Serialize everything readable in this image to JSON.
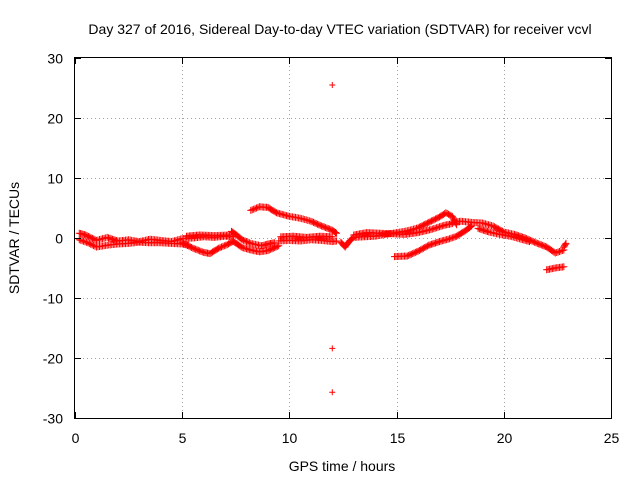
{
  "chart_data": {
    "type": "scatter",
    "title": "Day 327 of 2016, Sidereal Day-to-day VTEC variation (SDTVAR) for receiver vcvl",
    "xlabel": "GPS time / hours",
    "ylabel": "SDTVAR / TECUs",
    "xlim": [
      0,
      25
    ],
    "ylim": [
      -30,
      30
    ],
    "xticks": [
      0,
      5,
      10,
      15,
      20,
      25
    ],
    "yticks": [
      -30,
      -20,
      -10,
      0,
      10,
      20,
      30
    ],
    "grid": true,
    "marker": "+",
    "color": "#ff0000",
    "series": [
      {
        "name": "SDTVAR",
        "segments": [
          [
            [
              0.2,
              0.8
            ],
            [
              0.5,
              0.5
            ],
            [
              1,
              -0.4
            ],
            [
              1.5,
              0.1
            ],
            [
              2,
              -0.5
            ],
            [
              2.5,
              -0.3
            ],
            [
              3,
              -0.6
            ],
            [
              3.5,
              -0.2
            ],
            [
              4,
              -0.4
            ],
            [
              4.5,
              -0.6
            ],
            [
              5,
              -0.1
            ],
            [
              5.5,
              0.0
            ],
            [
              6,
              0.2
            ],
            [
              6.5,
              0.1
            ],
            [
              7,
              0.3
            ],
            [
              7.4,
              0.2
            ]
          ],
          [
            [
              0.2,
              -0.3
            ],
            [
              0.6,
              -0.8
            ],
            [
              1,
              -1.5
            ],
            [
              1.5,
              -1.2
            ],
            [
              2,
              -1.0
            ],
            [
              2.5,
              -0.9
            ],
            [
              3,
              -0.7
            ],
            [
              3.5,
              -0.8
            ],
            [
              4,
              -0.8
            ],
            [
              4.5,
              -0.9
            ],
            [
              5,
              -1.0
            ],
            [
              5.3,
              -1.2
            ]
          ],
          [
            [
              5.0,
              -0.8
            ],
            [
              5.5,
              -1.7
            ],
            [
              6,
              -2.4
            ],
            [
              6.3,
              -2.6
            ],
            [
              6.7,
              -1.7
            ],
            [
              7.1,
              -1.1
            ],
            [
              7.4,
              -0.5
            ]
          ],
          [
            [
              5.2,
              0.3
            ],
            [
              5.8,
              0.5
            ],
            [
              6.5,
              0.4
            ],
            [
              7.2,
              0.5
            ]
          ],
          [
            [
              7.3,
              1.1
            ],
            [
              7.5,
              0.6
            ],
            [
              7.8,
              -0.3
            ],
            [
              8.2,
              -0.9
            ],
            [
              8.7,
              -1.3
            ],
            [
              9.0,
              -1.0
            ],
            [
              9.3,
              -0.8
            ]
          ],
          [
            [
              7.4,
              -0.6
            ],
            [
              7.8,
              -1.6
            ],
            [
              8.2,
              -2.0
            ],
            [
              8.6,
              -2.3
            ],
            [
              9.0,
              -2.1
            ],
            [
              9.5,
              -1.3
            ]
          ],
          [
            [
              8.2,
              4.6
            ],
            [
              8.6,
              5.2
            ],
            [
              9.0,
              5.1
            ],
            [
              9.4,
              4.2
            ],
            [
              10,
              3.6
            ],
            [
              10.5,
              3.3
            ],
            [
              11,
              2.8
            ],
            [
              11.5,
              2.0
            ],
            [
              12,
              1.3
            ],
            [
              12.2,
              0.8
            ]
          ],
          [
            [
              9.5,
              -0.5
            ],
            [
              10,
              -0.4
            ],
            [
              10.5,
              -0.5
            ],
            [
              11,
              -0.3
            ],
            [
              11.5,
              -0.4
            ],
            [
              12,
              -0.6
            ],
            [
              12.2,
              -0.5
            ]
          ],
          [
            [
              9.6,
              0.2
            ],
            [
              10.2,
              0.3
            ],
            [
              10.8,
              0.1
            ],
            [
              11.4,
              0.3
            ],
            [
              12.0,
              0.2
            ]
          ],
          [
            [
              12.4,
              -0.7
            ],
            [
              12.6,
              -1.5
            ],
            [
              12.8,
              -0.5
            ],
            [
              13,
              0.1
            ],
            [
              13.5,
              0.2
            ],
            [
              14,
              0.3
            ],
            [
              14.5,
              0.6
            ],
            [
              15,
              0.9
            ],
            [
              15.5,
              1.2
            ],
            [
              16,
              1.7
            ],
            [
              16.5,
              2.6
            ],
            [
              17,
              3.5
            ],
            [
              17.3,
              4.2
            ],
            [
              17.6,
              3.6
            ],
            [
              17.8,
              2.2
            ]
          ],
          [
            [
              13,
              0.5
            ],
            [
              13.6,
              0.9
            ],
            [
              14.2,
              0.8
            ],
            [
              14.8,
              0.7
            ],
            [
              15.4,
              0.6
            ],
            [
              16.0,
              0.9
            ],
            [
              16.6,
              1.4
            ],
            [
              17.2,
              2.1
            ],
            [
              17.6,
              2.4
            ]
          ],
          [
            [
              14.9,
              -3.1
            ],
            [
              15.5,
              -3.0
            ],
            [
              16,
              -2.2
            ],
            [
              16.5,
              -1.2
            ],
            [
              17,
              -0.6
            ],
            [
              17.4,
              -0.2
            ],
            [
              17.8,
              0.3
            ],
            [
              18.2,
              1.2
            ],
            [
              18.5,
              2.0
            ]
          ],
          [
            [
              17.6,
              2.6
            ],
            [
              18,
              2.8
            ],
            [
              18.5,
              2.6
            ],
            [
              19,
              2.5
            ],
            [
              19.5,
              2.0
            ],
            [
              20,
              1.0
            ],
            [
              20.5,
              0.6
            ],
            [
              21,
              0.0
            ],
            [
              21.5,
              -0.8
            ],
            [
              22,
              -1.5
            ],
            [
              22.4,
              -2.5
            ],
            [
              22.8,
              -2.0
            ]
          ],
          [
            [
              18.8,
              1.6
            ],
            [
              19.3,
              1.0
            ],
            [
              19.8,
              0.6
            ],
            [
              20.3,
              0.3
            ],
            [
              20.8,
              -0.2
            ],
            [
              21.2,
              -0.6
            ]
          ],
          [
            [
              22.0,
              -5.3
            ],
            [
              22.4,
              -5.0
            ],
            [
              22.8,
              -4.8
            ]
          ],
          [
            [
              22.8,
              -1.5
            ],
            [
              22.9,
              -0.9
            ]
          ]
        ],
        "outliers": [
          [
            12.0,
            25.5
          ],
          [
            12.0,
            -18.4
          ],
          [
            12.0,
            -25.7
          ]
        ]
      }
    ]
  }
}
